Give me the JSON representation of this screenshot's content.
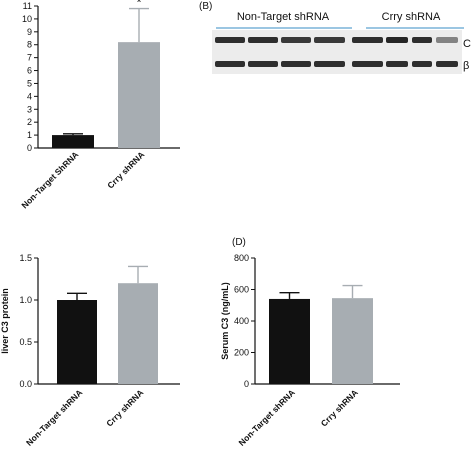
{
  "chart_data": [
    {
      "id": "A",
      "type": "bar",
      "panel_label": "",
      "ylabel": "",
      "categories": [
        "Non-Target ShRNA",
        "Crry shRNA"
      ],
      "values": [
        1.0,
        8.2
      ],
      "errors": [
        0.1,
        2.6
      ],
      "colors": [
        "#111111",
        "#a7adb2"
      ],
      "ylim": [
        0,
        11
      ],
      "yticks": [
        0,
        1,
        2,
        3,
        4,
        5,
        6,
        7,
        8,
        9,
        10,
        11
      ],
      "ytick_labels": [
        "0",
        "1",
        "2",
        "3",
        "4",
        "5",
        "6",
        "7",
        "8",
        "9",
        "10",
        "11"
      ],
      "annotations": [
        "",
        "*"
      ]
    },
    {
      "id": "C",
      "type": "bar",
      "panel_label": "",
      "ylabel": "liver C3 protein",
      "categories": [
        "Non-Target shRNA",
        "Crry shRNA"
      ],
      "values": [
        1.0,
        1.2
      ],
      "errors": [
        0.08,
        0.2
      ],
      "colors": [
        "#111111",
        "#a7adb2"
      ],
      "ylim": [
        0,
        1.5
      ],
      "yticks": [
        0,
        0.5,
        1.0,
        1.5
      ],
      "ytick_labels": [
        "0.0",
        "0.5",
        "1.0",
        "1.5"
      ]
    },
    {
      "id": "D",
      "type": "bar",
      "panel_label": "(D)",
      "ylabel": "Serum C3 (ng/mL)",
      "categories": [
        "Non-Target shRNA",
        "Crry shRNA"
      ],
      "values": [
        540,
        545
      ],
      "errors": [
        40,
        80
      ],
      "colors": [
        "#111111",
        "#a7adb2"
      ],
      "ylim": [
        0,
        800
      ],
      "yticks": [
        0,
        200,
        400,
        600,
        800
      ],
      "ytick_labels": [
        "0",
        "200",
        "400",
        "600",
        "800"
      ]
    }
  ],
  "blot": {
    "panel_label": "(B)",
    "groups": [
      "Non-Target shRNA",
      "Crry shRNA"
    ],
    "row_labels": [
      "C",
      "β"
    ],
    "group_line_color": "#7ab4d8"
  }
}
